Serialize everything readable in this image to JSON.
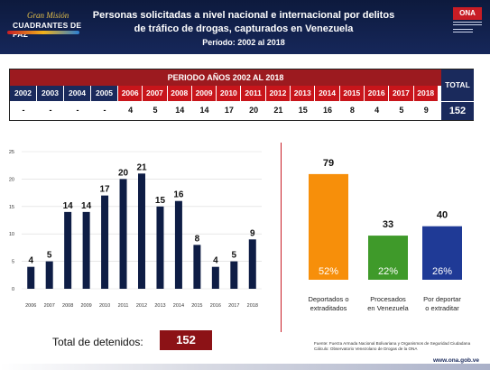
{
  "header": {
    "logo_left_top": "Gran Misión",
    "logo_left_main": "CUADRANTES DE PAZ",
    "title_line1": "Personas solicitadas a nivel nacional e internacional por delitos",
    "title_line2": "de tráfico de drogas, capturados en Venezuela",
    "title_line3": "Período: 2002 al 2018",
    "logo_right": "ONA"
  },
  "table": {
    "period_label": "PERIODO AÑOS 2002 AL 2018",
    "years_pre": [
      "2002",
      "2003",
      "2004",
      "2005"
    ],
    "years_cur": [
      "2006",
      "2007",
      "2008",
      "2009",
      "2010",
      "2011",
      "2012",
      "2013",
      "2014",
      "2015",
      "2016",
      "2017",
      "2018"
    ],
    "values_pre": [
      "-",
      "-",
      "-",
      "-"
    ],
    "values_cur": [
      "4",
      "5",
      "14",
      "14",
      "17",
      "20",
      "21",
      "15",
      "16",
      "8",
      "4",
      "5",
      "9"
    ],
    "total_label": "TOTAL",
    "total_value": "152"
  },
  "colors": {
    "navy": "#1a2a5c",
    "red": "#c8151b",
    "dark_red": "#8c1216",
    "bar_navy": "#0e1d45",
    "orange": "#f78f0a",
    "green": "#3f9a2a",
    "blue": "#1f3a96"
  },
  "chart_data": [
    {
      "type": "bar",
      "categories": [
        "2006",
        "2007",
        "2008",
        "2009",
        "2010",
        "2011",
        "2012",
        "2013",
        "2014",
        "2015",
        "2016",
        "2017",
        "2018"
      ],
      "values": [
        4,
        5,
        14,
        14,
        17,
        20,
        21,
        15,
        16,
        8,
        4,
        5,
        9
      ],
      "ylim": [
        0,
        25
      ],
      "yticks": [
        0,
        5,
        10,
        15,
        20,
        25
      ],
      "grid": true,
      "title": "",
      "xlabel": "",
      "ylabel": ""
    },
    {
      "type": "bar",
      "categories": [
        "Deportados o extraditados",
        "Procesados en Venezuela",
        "Por deportar o extraditar"
      ],
      "values": [
        79,
        33,
        40
      ],
      "percent_labels": [
        "52%",
        "22%",
        "26%"
      ],
      "bar_colors": [
        "#f78f0a",
        "#3f9a2a",
        "#1f3a96"
      ],
      "ylim": [
        0,
        85
      ],
      "title": "",
      "xlabel": "",
      "ylabel": ""
    }
  ],
  "footer": {
    "total_label": "Total de detenidos:",
    "total_value": "152",
    "source_line1": "Fuente: Fuerza Armada Nacional Bolivariana y Organismos de Seguridad Ciudadana",
    "source_line2": "Cálculo: Observatorio Venezolano de Drogas de la ONA",
    "site": "www.ona.gob.ve"
  }
}
